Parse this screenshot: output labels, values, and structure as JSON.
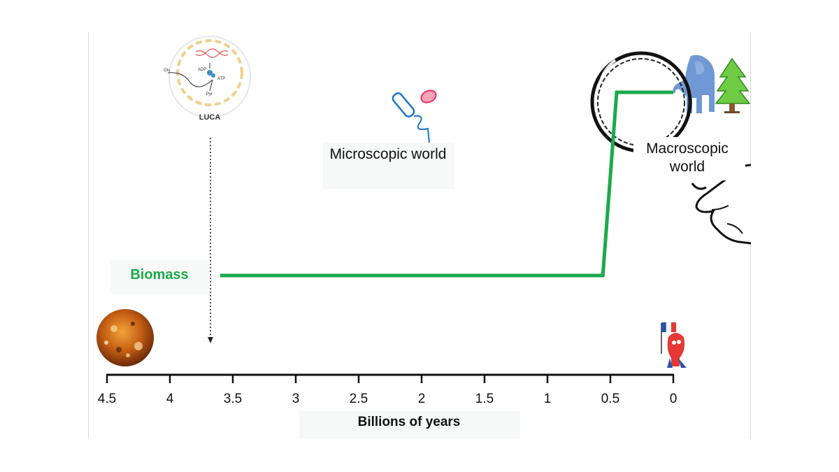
{
  "labels": {
    "micro": "Microscopic world",
    "macro": "Macroscopic world",
    "biomass": "Biomass",
    "x_axis": "Billions of years",
    "luca": "LUCA",
    "luca_glu": "Glu",
    "luca_adp": "ADP",
    "luca_atp": "ATP",
    "luca_pyr": "Pyr"
  },
  "axis": {
    "ticks": [
      "4.5",
      "4",
      "3.5",
      "3",
      "2.5",
      "2",
      "1.5",
      "1",
      "0.5",
      "0"
    ],
    "range": [
      4.5,
      0
    ],
    "direction": "decreasing-right"
  },
  "biomass_curve": {
    "color": "#1aaa4b",
    "points": [
      [
        3.6,
        0.0
      ],
      [
        0.56,
        0.0
      ],
      [
        0.45,
        1.0
      ],
      [
        0.0,
        1.0
      ]
    ]
  },
  "luca_marker": {
    "time": 3.7
  },
  "colors": {
    "biomass": "#1aaa4b",
    "axis": "#111111",
    "elephant": "#6f98d4",
    "tree": "#3aa93a",
    "bacterium": "#1d74c8",
    "cell": "#e8306a"
  },
  "icons": [
    "early-earth-icon",
    "luca-cell-icon",
    "bacterium-icon",
    "magnifying-glass-icon",
    "elephant-icon",
    "tree-icon",
    "hand-icon",
    "mascot-flag-icon"
  ]
}
